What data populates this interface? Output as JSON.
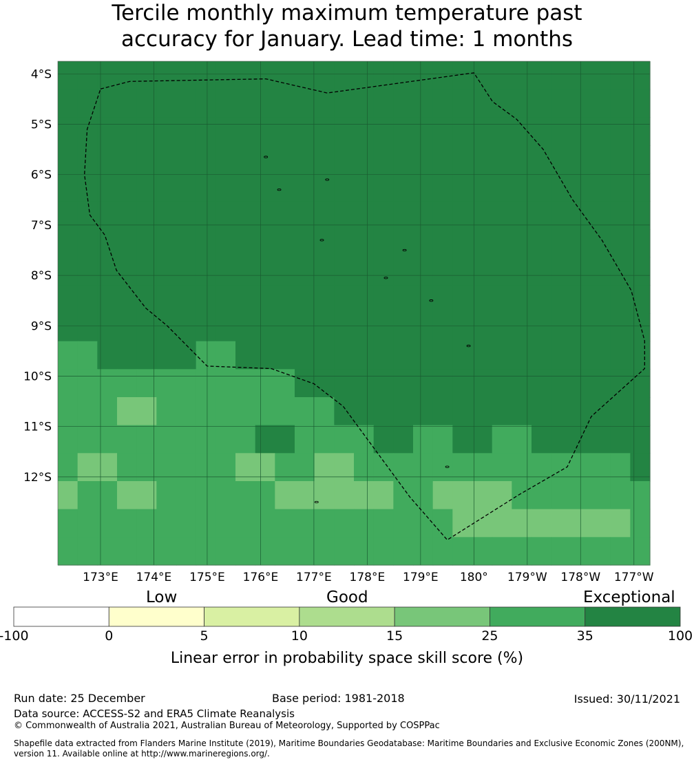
{
  "title": {
    "line1": "Tercile monthly maximum temperature past",
    "line2": "accuracy for January. Lead time: 1 months"
  },
  "map": {
    "lon_range": [
      172.2,
      183.3
    ],
    "lat_range": [
      -13.75,
      -3.75
    ],
    "x_ticks": [
      {
        "lon": 173,
        "label": "173°E"
      },
      {
        "lon": 174,
        "label": "174°E"
      },
      {
        "lon": 175,
        "label": "175°E"
      },
      {
        "lon": 176,
        "label": "176°E"
      },
      {
        "lon": 177,
        "label": "177°E"
      },
      {
        "lon": 178,
        "label": "178°E"
      },
      {
        "lon": 179,
        "label": "179°E"
      },
      {
        "lon": 180,
        "label": "180°"
      },
      {
        "lon": 181,
        "label": "179°W"
      },
      {
        "lon": 182,
        "label": "178°W"
      },
      {
        "lon": 183,
        "label": "177°W"
      }
    ],
    "y_ticks": [
      {
        "lat": -4,
        "label": "4°S"
      },
      {
        "lat": -5,
        "label": "5°S"
      },
      {
        "lat": -6,
        "label": "6°S"
      },
      {
        "lat": -7,
        "label": "7°S"
      },
      {
        "lat": -8,
        "label": "8°S"
      },
      {
        "lat": -9,
        "label": "9°S"
      },
      {
        "lat": -10,
        "label": "10°S"
      },
      {
        "lat": -11,
        "label": "11°S"
      },
      {
        "lat": -12,
        "label": "12°S"
      }
    ],
    "grid": true,
    "eez_boundary_lonlat": [
      [
        173.0,
        -4.3
      ],
      [
        173.55,
        -4.15
      ],
      [
        176.1,
        -4.1
      ],
      [
        177.25,
        -4.38
      ],
      [
        180.0,
        -3.98
      ],
      [
        180.35,
        -4.55
      ],
      [
        180.8,
        -4.9
      ],
      [
        181.3,
        -5.5
      ],
      [
        181.85,
        -6.5
      ],
      [
        182.4,
        -7.3
      ],
      [
        182.95,
        -8.3
      ],
      [
        183.2,
        -9.3
      ],
      [
        183.2,
        -9.85
      ],
      [
        182.2,
        -10.8
      ],
      [
        181.75,
        -11.8
      ],
      [
        180.85,
        -12.35
      ],
      [
        179.5,
        -13.25
      ],
      [
        178.8,
        -12.4
      ],
      [
        177.55,
        -10.6
      ],
      [
        177.0,
        -10.15
      ],
      [
        176.2,
        -9.85
      ],
      [
        175.0,
        -9.8
      ],
      [
        174.25,
        -9.0
      ],
      [
        173.85,
        -8.65
      ],
      [
        173.3,
        -7.9
      ],
      [
        173.08,
        -7.2
      ],
      [
        172.8,
        -6.8
      ],
      [
        172.7,
        -6.0
      ],
      [
        172.75,
        -5.1
      ],
      [
        173.0,
        -4.3
      ]
    ],
    "islands_lonlat": [
      [
        176.1,
        -5.65
      ],
      [
        176.35,
        -6.3
      ],
      [
        177.25,
        -6.1
      ],
      [
        177.15,
        -7.3
      ],
      [
        178.7,
        -7.5
      ],
      [
        178.35,
        -8.05
      ],
      [
        179.2,
        -8.5
      ],
      [
        179.9,
        -9.4
      ],
      [
        179.5,
        -11.8
      ],
      [
        177.05,
        -12.5
      ]
    ],
    "cell_grid": {
      "note": "skill category index per grid row (north to south); 6=35-100, 5=25-35, 4=15-25",
      "rows": [
        "666666666666666666666666666666",
        "666666666666666666666666666666",
        "666666666666666666666666666666",
        "666666666666666666666666666666",
        "666666666666666666666666666666",
        "666666666666666666666666666666",
        "666666666666666666666666666666",
        "666666666666666666666666666666",
        "666666666666666666666666666666",
        "666666666666666666666666666666",
        "556666655666666666666666666666",
        "555555555555666666666666666666",
        "555445555555556666666666666666",
        "555555555566555566556655666666",
        "544555555445544555555555555556",
        "455445555554444445544445555555",
        "555555555555555555554444444445",
        "555555555555555555555555555555"
      ]
    }
  },
  "colorbar": {
    "categories": [
      "Low",
      "Good",
      "Exceptional"
    ],
    "bins": [
      {
        "from": -100,
        "to": 0,
        "color": "#ffffff"
      },
      {
        "from": 0,
        "to": 5,
        "color": "#ffffcc"
      },
      {
        "from": 5,
        "to": 10,
        "color": "#d9f0a3"
      },
      {
        "from": 10,
        "to": 15,
        "color": "#addd8e"
      },
      {
        "from": 15,
        "to": 25,
        "color": "#78c679"
      },
      {
        "from": 25,
        "to": 35,
        "color": "#41ab5d"
      },
      {
        "from": 35,
        "to": 100,
        "color": "#238443"
      }
    ],
    "tick_labels": [
      "-100",
      "0",
      "5",
      "10",
      "15",
      "25",
      "35",
      "100"
    ],
    "label": "Linear error in probability space skill score (%)"
  },
  "footer": {
    "run_date": "Run date: 25 December",
    "base_period": "Base period: 1981-2018",
    "issued": "Issued: 30/11/2021",
    "data_source": "Data source: ACCESS-S2 and ERA5 Climate Reanalysis",
    "copyright": "© Commonwealth of Australia 2021, Australian Bureau of Meteorology, Supported by COSPPac",
    "shapefile_line1": "Shapefile data extracted from Flanders Marine Institute (2019), Maritime Boundaries Geodatabase: Maritime Boundaries and Exclusive Economic Zones (200NM),",
    "shapefile_line2": "version 11. Available online at http://www.marineregions.org/."
  }
}
